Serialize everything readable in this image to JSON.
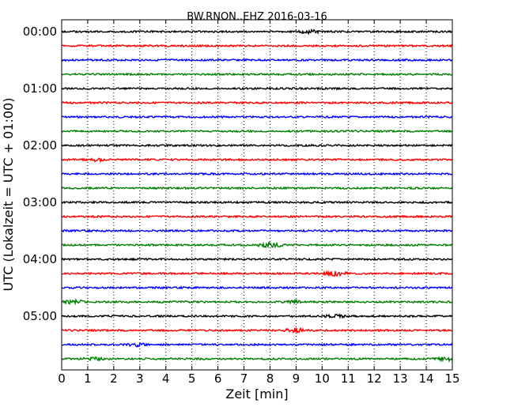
{
  "chart_data": {
    "type": "line",
    "title": "BW.RNON..EHZ 2016-03-16",
    "xlabel": "Zeit  [min]",
    "ylabel": "UTC (Lokalzeit = UTC + 01:00)",
    "xlim": [
      0,
      15
    ],
    "x_ticks": [
      "0",
      "1",
      "2",
      "3",
      "4",
      "5",
      "6",
      "7",
      "8",
      "9",
      "10",
      "11",
      "12",
      "13",
      "14",
      "15"
    ],
    "y_tick_labels": [
      "00:00",
      "01:00",
      "02:00",
      "03:00",
      "04:00",
      "05:00"
    ],
    "grid": "vertical dotted",
    "color_cycle": [
      "#000000",
      "#ff0000",
      "#0000ff",
      "#008000"
    ],
    "traces": [
      {
        "start": "00:00",
        "events": [
          {
            "t": 9.5,
            "amp": 1.8
          }
        ]
      },
      {
        "start": "00:15",
        "events": []
      },
      {
        "start": "00:30",
        "events": []
      },
      {
        "start": "00:45",
        "events": []
      },
      {
        "start": "01:00",
        "events": []
      },
      {
        "start": "01:15",
        "events": []
      },
      {
        "start": "01:30",
        "events": []
      },
      {
        "start": "01:45",
        "events": []
      },
      {
        "start": "02:00",
        "events": []
      },
      {
        "start": "02:15",
        "events": [
          {
            "t": 1.3,
            "amp": 1.5
          }
        ]
      },
      {
        "start": "02:30",
        "events": []
      },
      {
        "start": "02:45",
        "events": []
      },
      {
        "start": "03:00",
        "events": []
      },
      {
        "start": "03:15",
        "events": []
      },
      {
        "start": "03:30",
        "events": []
      },
      {
        "start": "03:45",
        "events": [
          {
            "t": 8.0,
            "amp": 3.5
          }
        ]
      },
      {
        "start": "04:00",
        "events": []
      },
      {
        "start": "04:15",
        "events": [
          {
            "t": 10.5,
            "amp": 2.5
          }
        ]
      },
      {
        "start": "04:30",
        "events": []
      },
      {
        "start": "04:45",
        "events": [
          {
            "t": 0.5,
            "amp": 2.0
          },
          {
            "t": 9.0,
            "amp": 1.5
          }
        ]
      },
      {
        "start": "05:00",
        "events": [
          {
            "t": 10.5,
            "amp": 1.5
          }
        ]
      },
      {
        "start": "05:15",
        "events": [
          {
            "t": 9.0,
            "amp": 2.5
          }
        ]
      },
      {
        "start": "05:30",
        "events": [
          {
            "t": 2.8,
            "amp": 2.0
          }
        ]
      },
      {
        "start": "05:45",
        "events": [
          {
            "t": 1.2,
            "amp": 1.5
          },
          {
            "t": 14.8,
            "amp": 2.0
          }
        ]
      }
    ]
  }
}
